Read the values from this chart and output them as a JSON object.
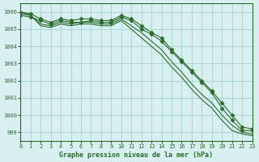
{
  "title": "Graphe pression niveau de la mer (hPa)",
  "background_color": "#d8f0f0",
  "grid_color": "#b0d8d8",
  "line_color": "#2d6b2d",
  "xlim": [
    0,
    23
  ],
  "ylim": [
    998.5,
    1006.5
  ],
  "yticks": [
    999,
    1000,
    1001,
    1002,
    1003,
    1004,
    1005,
    1006
  ],
  "xticks": [
    0,
    1,
    2,
    3,
    4,
    5,
    6,
    7,
    8,
    9,
    10,
    11,
    12,
    13,
    14,
    15,
    16,
    17,
    18,
    19,
    20,
    21,
    22,
    23
  ],
  "series": [
    {
      "x": [
        0,
        1,
        2,
        3,
        4,
        5,
        6,
        7,
        8,
        9,
        10,
        11,
        12,
        13,
        14,
        15,
        16,
        17,
        18,
        19,
        20,
        21,
        22,
        23
      ],
      "y": [
        1005.8,
        1005.7,
        1005.5,
        1005.3,
        1005.5,
        1005.4,
        1005.4,
        1005.5,
        1005.4,
        1005.4,
        1005.7,
        1005.5,
        1005.0,
        1004.7,
        1004.3,
        1003.7,
        1003.1,
        1002.5,
        1001.9,
        1001.3,
        1000.4,
        999.7,
        999.1,
        999.1
      ],
      "marker": "D",
      "markersize": 2.5
    },
    {
      "x": [
        0,
        1,
        2,
        3,
        4,
        5,
        6,
        7,
        8,
        9,
        10,
        11,
        12,
        13,
        14,
        15,
        16,
        17,
        18,
        19,
        20,
        21,
        22,
        23
      ],
      "y": [
        1005.9,
        1005.8,
        1005.3,
        1005.2,
        1005.4,
        1005.3,
        1005.4,
        1005.4,
        1005.3,
        1005.3,
        1005.6,
        1005.2,
        1004.8,
        1004.3,
        1003.8,
        1003.1,
        1002.5,
        1001.8,
        1001.2,
        1000.7,
        1000.0,
        999.4,
        999.0,
        998.9
      ],
      "marker": null,
      "markersize": 0
    },
    {
      "x": [
        0,
        1,
        2,
        3,
        4,
        5,
        6,
        7,
        8,
        9,
        10,
        11,
        12,
        13,
        14,
        15,
        16,
        17,
        18,
        19,
        20,
        21,
        22,
        23
      ],
      "y": [
        1006.0,
        1005.8,
        1005.2,
        1005.1,
        1005.3,
        1005.2,
        1005.3,
        1005.3,
        1005.2,
        1005.2,
        1005.5,
        1005.0,
        1004.5,
        1004.0,
        1003.5,
        1002.8,
        1002.2,
        1001.5,
        1000.9,
        1000.4,
        999.7,
        999.1,
        998.9,
        998.8
      ],
      "marker": null,
      "markersize": 0
    },
    {
      "x": [
        0,
        1,
        2,
        3,
        4,
        5,
        6,
        7,
        8,
        9,
        10,
        11,
        12,
        13,
        14,
        15,
        16,
        17,
        18,
        19,
        20,
        21,
        22,
        23
      ],
      "y": [
        1006.0,
        1005.9,
        1005.6,
        1005.4,
        1005.6,
        1005.5,
        1005.6,
        1005.6,
        1005.5,
        1005.5,
        1005.8,
        1005.6,
        1005.2,
        1004.8,
        1004.5,
        1003.8,
        1003.2,
        1002.6,
        1002.0,
        1001.4,
        1000.7,
        1000.0,
        999.3,
        999.2
      ],
      "marker": "D",
      "markersize": 2.5
    }
  ]
}
